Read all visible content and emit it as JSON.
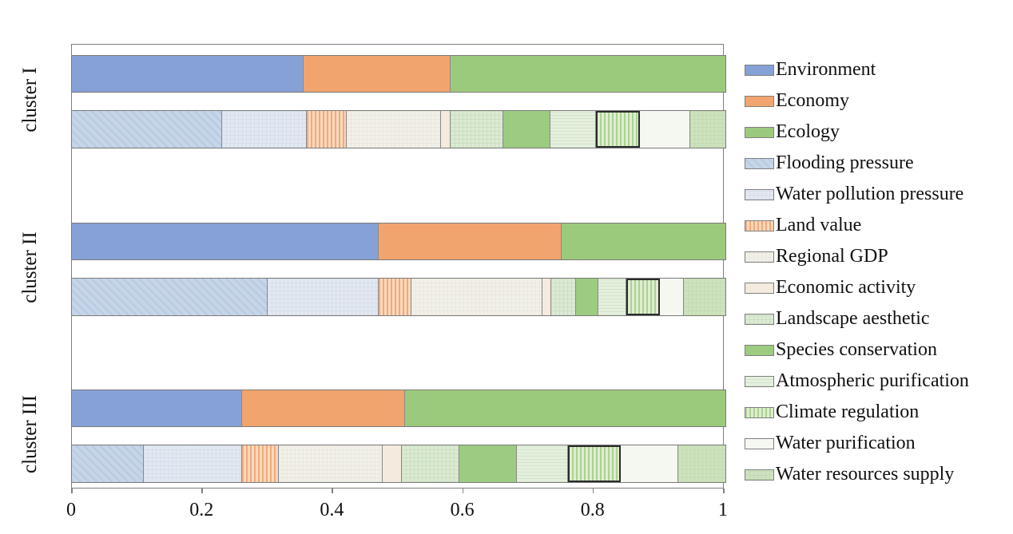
{
  "figure": {
    "background": "#ffffff",
    "frame_color": "#7f7f7f",
    "highlight_border_color": "#2b2b2b"
  },
  "axis": {
    "ticks": [
      "0",
      "0.2",
      "0.4",
      "0.6",
      "0.8",
      "1"
    ]
  },
  "chart_data": {
    "type": "bar",
    "orientation": "horizontal-stacked",
    "title": "",
    "xlabel": "",
    "ylabel": "",
    "xlim": [
      0,
      1
    ],
    "grid": false,
    "legend_position": "right",
    "clusters": [
      "cluster I",
      "cluster II",
      "cluster III"
    ],
    "aggregate_series": [
      {
        "name": "Environment",
        "values": [
          0.355,
          0.47,
          0.26
        ]
      },
      {
        "name": "Economy",
        "values": [
          0.225,
          0.28,
          0.25
        ]
      },
      {
        "name": "Ecology",
        "values": [
          0.42,
          0.25,
          0.49
        ]
      }
    ],
    "detail_series": [
      {
        "name": "Flooding pressure",
        "values": [
          0.23,
          0.3,
          0.11
        ]
      },
      {
        "name": "Water pollution pressure",
        "values": [
          0.13,
          0.17,
          0.15
        ]
      },
      {
        "name": "Land value",
        "values": [
          0.06,
          0.05,
          0.057
        ]
      },
      {
        "name": "Regional GDP",
        "values": [
          0.145,
          0.2,
          0.158
        ]
      },
      {
        "name": "Economic activity",
        "values": [
          0.015,
          0.013,
          0.03
        ]
      },
      {
        "name": "Landscape aesthetic",
        "values": [
          0.08,
          0.038,
          0.088
        ]
      },
      {
        "name": "Species conservation",
        "values": [
          0.072,
          0.035,
          0.088
        ]
      },
      {
        "name": "Atmospheric purification",
        "values": [
          0.07,
          0.043,
          0.078
        ]
      },
      {
        "name": "Climate regulation",
        "values": [
          0.067,
          0.051,
          0.081
        ]
      },
      {
        "name": "Water purification",
        "values": [
          0.077,
          0.037,
          0.088
        ]
      },
      {
        "name": "Water resources supply",
        "values": [
          0.054,
          0.063,
          0.072
        ]
      }
    ],
    "highlighted_series": "Climate regulation",
    "legend": [
      "Environment",
      "Economy",
      "Ecology",
      "Flooding pressure",
      "Water pollution pressure",
      "Land value",
      "Regional GDP",
      "Economic activity",
      "Landscape aesthetic",
      "Species conservation",
      "Atmospheric purification",
      "Climate regulation",
      "Water purification",
      "Water resources supply"
    ]
  },
  "styles": {
    "Environment": {
      "fill": "#86a1d6",
      "pattern": "none"
    },
    "Economy": {
      "fill": "#f2a46e",
      "pattern": "none"
    },
    "Ecology": {
      "fill": "#9cca7d",
      "pattern": "none"
    },
    "Flooding pressure": {
      "fill": "#c6d5e8",
      "pattern": "diag",
      "line": "#b8cae1"
    },
    "Water pollution pressure": {
      "fill": "#e3e9f1",
      "pattern": "grid",
      "line": "#d5deea"
    },
    "Land value": {
      "fill": "#f9d8bc",
      "pattern": "vstripe",
      "line": "#efaa7d"
    },
    "Regional GDP": {
      "fill": "#f2f0e9",
      "pattern": "grid",
      "line": "#eae7dc"
    },
    "Economic activity": {
      "fill": "#f4eade",
      "pattern": "none"
    },
    "Landscape aesthetic": {
      "fill": "#dcead4",
      "pattern": "grid",
      "line": "#ccdfc1"
    },
    "Species conservation": {
      "fill": "#9ccb81",
      "pattern": "none"
    },
    "Atmospheric purification": {
      "fill": "#e5efde",
      "pattern": "hlines",
      "line": "#d3e4c8"
    },
    "Climate regulation": {
      "fill": "#dfedd2",
      "pattern": "vstripe",
      "line": "#abd292",
      "highlight": true
    },
    "Water purification": {
      "fill": "#f4f8f0",
      "pattern": "none"
    },
    "Water resources supply": {
      "fill": "#cee2bf",
      "pattern": "grid",
      "line": "#c3dab2"
    }
  }
}
